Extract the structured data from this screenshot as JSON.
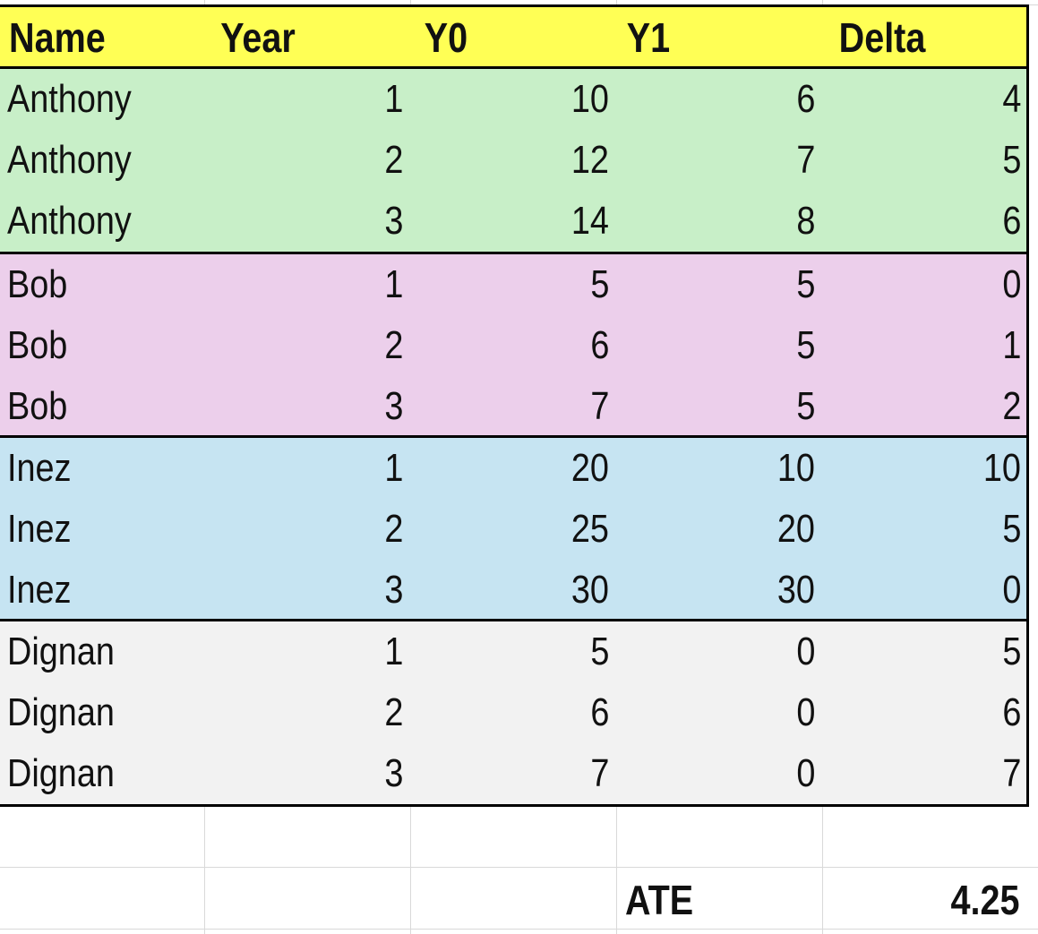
{
  "sheet": {
    "colors": {
      "header": "#ffff55",
      "groups": [
        "#c8efc8",
        "#eccfeb",
        "#c6e4f2",
        "#f2f2f2"
      ],
      "gridline": "#d9d9d9",
      "border": "#000000"
    },
    "headers": [
      "Name",
      "Year",
      "Y0",
      "Y1",
      "Delta"
    ],
    "rows": [
      [
        "Anthony",
        "1",
        "10",
        "6",
        "4"
      ],
      [
        "Anthony",
        "2",
        "12",
        "7",
        "5"
      ],
      [
        "Anthony",
        "3",
        "14",
        "8",
        "6"
      ],
      [
        "Bob",
        "1",
        "5",
        "5",
        "0"
      ],
      [
        "Bob",
        "2",
        "6",
        "5",
        "1"
      ],
      [
        "Bob",
        "3",
        "7",
        "5",
        "2"
      ],
      [
        "Inez",
        "1",
        "20",
        "10",
        "10"
      ],
      [
        "Inez",
        "2",
        "25",
        "20",
        "5"
      ],
      [
        "Inez",
        "3",
        "30",
        "30",
        "0"
      ],
      [
        "Dignan",
        "1",
        "5",
        "0",
        "5"
      ],
      [
        "Dignan",
        "2",
        "6",
        "0",
        "6"
      ],
      [
        "Dignan",
        "3",
        "7",
        "0",
        "7"
      ]
    ],
    "summary": {
      "label": "ATE",
      "value": "4.25"
    }
  }
}
